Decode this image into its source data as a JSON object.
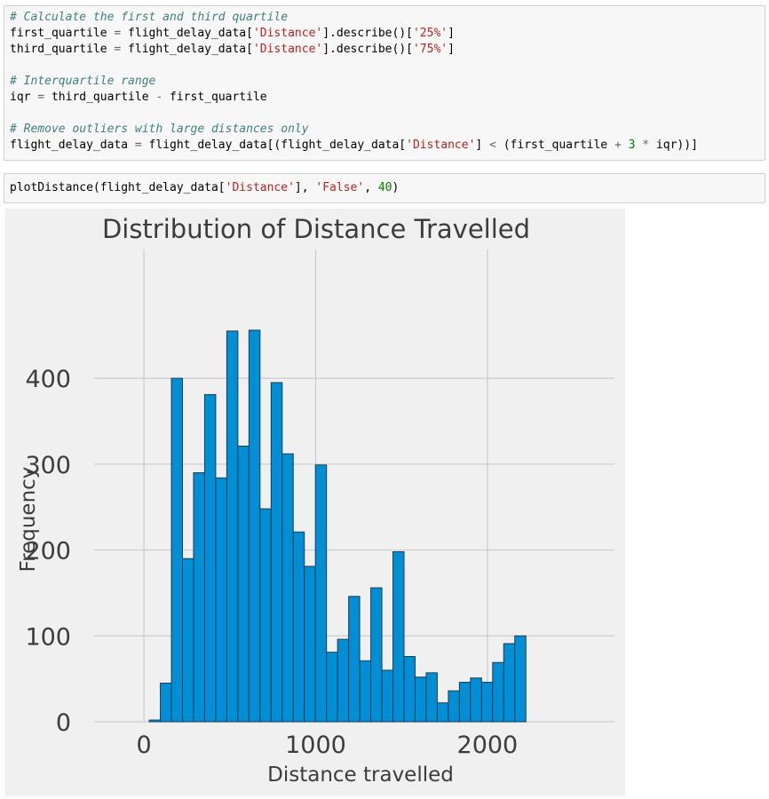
{
  "cells": [
    {
      "lines": [
        {
          "kind": "comment",
          "text": "# Calculate the first and third quartile"
        },
        {
          "kind": "code",
          "parts": [
            {
              "t": "first_quartile ",
              "c": ""
            },
            {
              "t": "=",
              "c": "op"
            },
            {
              "t": " flight_delay_data[",
              "c": ""
            },
            {
              "t": "'Distance'",
              "c": "str"
            },
            {
              "t": "].describe()[",
              "c": ""
            },
            {
              "t": "'25%'",
              "c": "str"
            },
            {
              "t": "]",
              "c": ""
            }
          ]
        },
        {
          "kind": "code",
          "parts": [
            {
              "t": "third_quartile ",
              "c": ""
            },
            {
              "t": "=",
              "c": "op"
            },
            {
              "t": " flight_delay_data[",
              "c": ""
            },
            {
              "t": "'Distance'",
              "c": "str"
            },
            {
              "t": "].describe()[",
              "c": ""
            },
            {
              "t": "'75%'",
              "c": "str"
            },
            {
              "t": "]",
              "c": ""
            }
          ]
        },
        {
          "kind": "blank"
        },
        {
          "kind": "comment",
          "text": "# Interquartile range"
        },
        {
          "kind": "code",
          "parts": [
            {
              "t": "iqr ",
              "c": ""
            },
            {
              "t": "=",
              "c": "op"
            },
            {
              "t": " third_quartile ",
              "c": ""
            },
            {
              "t": "-",
              "c": "op"
            },
            {
              "t": " first_quartile",
              "c": ""
            }
          ]
        },
        {
          "kind": "blank"
        },
        {
          "kind": "comment",
          "text": "# Remove outliers with large distances only"
        },
        {
          "kind": "code",
          "parts": [
            {
              "t": "flight_delay_data ",
              "c": ""
            },
            {
              "t": "=",
              "c": "op"
            },
            {
              "t": " flight_delay_data[(flight_delay_data[",
              "c": ""
            },
            {
              "t": "'Distance'",
              "c": "str"
            },
            {
              "t": "] ",
              "c": ""
            },
            {
              "t": "<",
              "c": "op"
            },
            {
              "t": " (first_quartile ",
              "c": ""
            },
            {
              "t": "+",
              "c": "op"
            },
            {
              "t": " ",
              "c": ""
            },
            {
              "t": "3",
              "c": "num"
            },
            {
              "t": " ",
              "c": ""
            },
            {
              "t": "*",
              "c": "op"
            },
            {
              "t": " iqr))]",
              "c": ""
            }
          ]
        }
      ]
    },
    {
      "lines": [
        {
          "kind": "code",
          "parts": [
            {
              "t": "plotDistance(flight_delay_data[",
              "c": ""
            },
            {
              "t": "'Distance'",
              "c": "str"
            },
            {
              "t": "], ",
              "c": ""
            },
            {
              "t": "'False'",
              "c": "str"
            },
            {
              "t": ", ",
              "c": ""
            },
            {
              "t": "40",
              "c": "num"
            },
            {
              "t": ")",
              "c": ""
            }
          ]
        }
      ]
    }
  ],
  "chart_data": {
    "type": "bar",
    "title": "Distribution of Distance Travelled",
    "xlabel": "Distance travelled",
    "ylabel": "Frequency",
    "xlim": [
      -290,
      2740
    ],
    "ylim": [
      0,
      550
    ],
    "xticks": [
      0,
      1000,
      2000
    ],
    "xtick_labels": [
      "0",
      "1000",
      "2000"
    ],
    "yticks": [
      0,
      100,
      200,
      300,
      400
    ],
    "ytick_labels": [
      "0",
      "100",
      "200",
      "300",
      "400"
    ],
    "grid": true,
    "bar_color": "#008fd5",
    "bar_edge_color": "#1f3b55",
    "background_color": "#f0f0f0",
    "grid_color": "#cbcbcb",
    "bin_start": 31,
    "bin_width": 64.5,
    "values": [
      2,
      45,
      400,
      190,
      290,
      381,
      284,
      455,
      321,
      456,
      248,
      395,
      312,
      221,
      181,
      299,
      81,
      96,
      146,
      71,
      156,
      60,
      198,
      76,
      52,
      57,
      22,
      36,
      46,
      51,
      46,
      69,
      91,
      100
    ]
  }
}
